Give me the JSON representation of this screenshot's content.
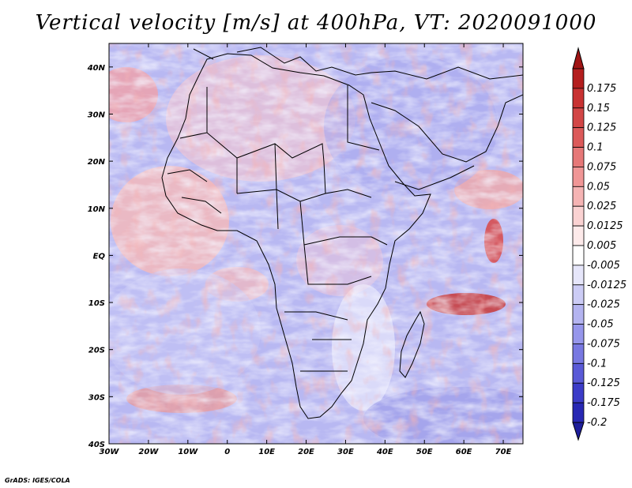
{
  "title": "Vertical velocity [m/s] at 400hPa, VT: 2020091000",
  "credit": "GrADS: IGES/COLA",
  "map": {
    "lon_range": [
      -30,
      75
    ],
    "lat_range": [
      -40,
      45
    ],
    "lon_ticks": [
      {
        "lon": -30,
        "label": "30W"
      },
      {
        "lon": -20,
        "label": "20W"
      },
      {
        "lon": -10,
        "label": "10W"
      },
      {
        "lon": 0,
        "label": "0"
      },
      {
        "lon": 10,
        "label": "10E"
      },
      {
        "lon": 20,
        "label": "20E"
      },
      {
        "lon": 30,
        "label": "30E"
      },
      {
        "lon": 40,
        "label": "40E"
      },
      {
        "lon": 50,
        "label": "50E"
      },
      {
        "lon": 60,
        "label": "60E"
      },
      {
        "lon": 70,
        "label": "70E"
      }
    ],
    "lat_ticks": [
      {
        "lat": 40,
        "label": "40N"
      },
      {
        "lat": 30,
        "label": "30N"
      },
      {
        "lat": 20,
        "label": "20N"
      },
      {
        "lat": 10,
        "label": "10N"
      },
      {
        "lat": 0,
        "label": "EQ"
      },
      {
        "lat": -10,
        "label": "10S"
      },
      {
        "lat": -20,
        "label": "20S"
      },
      {
        "lat": -30,
        "label": "30S"
      },
      {
        "lat": -40,
        "label": "40S"
      }
    ]
  },
  "colorbar": {
    "levels": [
      {
        "label": "0.175",
        "color": "#b41e1e"
      },
      {
        "label": "0.15",
        "color": "#c83232"
      },
      {
        "label": "0.125",
        "color": "#d24646"
      },
      {
        "label": "0.1",
        "color": "#dc5a5a"
      },
      {
        "label": "0.075",
        "color": "#e67878"
      },
      {
        "label": "0.05",
        "color": "#f09696"
      },
      {
        "label": "0.025",
        "color": "#f5b4b4"
      },
      {
        "label": "0.0125",
        "color": "#fad2d2"
      },
      {
        "label": "0.005",
        "color": "#fdeaea"
      },
      {
        "label": "-0.005",
        "color": "#ffffff"
      },
      {
        "label": "-0.0125",
        "color": "#e6e6fa"
      },
      {
        "label": "-0.025",
        "color": "#ccccf5"
      },
      {
        "label": "-0.05",
        "color": "#b4b4f0"
      },
      {
        "label": "-0.075",
        "color": "#9696eb"
      },
      {
        "label": "-0.1",
        "color": "#7878e1"
      },
      {
        "label": "-0.125",
        "color": "#5a5ad7"
      },
      {
        "label": "-0.175",
        "color": "#3c3cc8"
      },
      {
        "label": "-0.2",
        "color": "#2828b4"
      }
    ],
    "top_color": "#a01414",
    "bottom_color": "#1e1e9b"
  }
}
